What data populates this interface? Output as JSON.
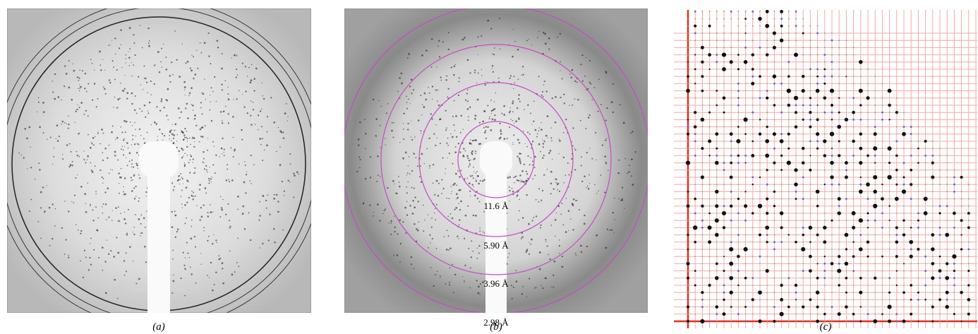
{
  "panels": [
    {
      "label": "(a)"
    },
    {
      "label": "(b)",
      "rings": [
        "11.6 Å",
        "5.90 Å",
        "3.96 Å",
        "2.98 Å"
      ]
    },
    {
      "label": "(c)"
    }
  ]
}
